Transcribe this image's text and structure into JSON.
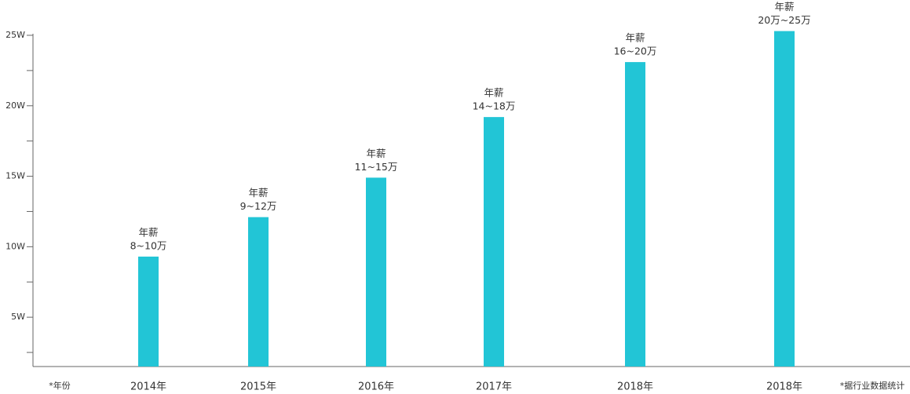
{
  "chart_data": {
    "type": "bar",
    "x_label": "*年份",
    "source": "*据行业数据统计",
    "categories": [
      "2014年",
      "2015年",
      "2016年",
      "2017年",
      "2018年",
      "2018年"
    ],
    "values": [
      9.3,
      12.1,
      14.9,
      19.2,
      23.1,
      25.3
    ],
    "annotation_title": "年薪",
    "annotations": [
      "8~10万",
      "9~12万",
      "11~15万",
      "14~18万",
      "16~20万",
      "20万~25万"
    ],
    "color": "#22c5d6",
    "ylim": [
      1.5,
      25.5
    ],
    "yticks": [
      {
        "value": 5,
        "label": "5W"
      },
      {
        "value": 10,
        "label": "10W"
      },
      {
        "value": 15,
        "label": "15W"
      },
      {
        "value": 20,
        "label": "20W"
      },
      {
        "value": 25,
        "label": "25W"
      }
    ],
    "minor_yticks": [
      2.5,
      7.5,
      12.5,
      17.5,
      22.5
    ]
  }
}
